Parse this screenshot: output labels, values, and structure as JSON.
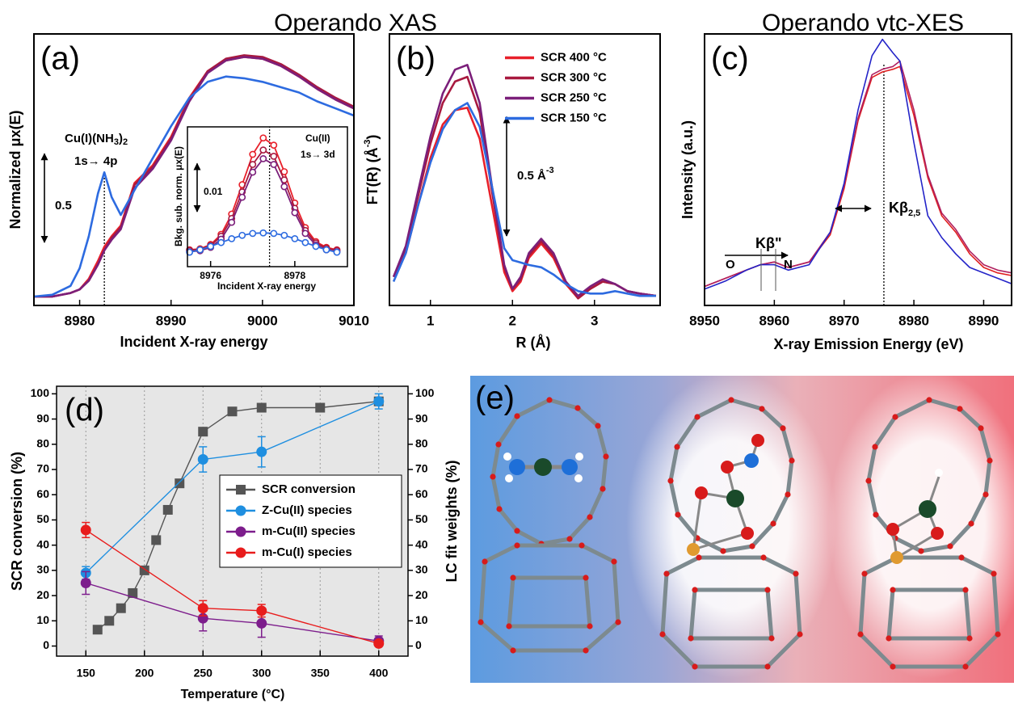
{
  "headings": [
    "Operando XAS",
    "Operando vtc-XES"
  ],
  "image_panel": {
    "label": "(e)"
  },
  "chart_data": [
    {
      "type": "line",
      "label": "(a)",
      "xlabel": "Incident X-ray energy",
      "ylabel": "Normalized μx(E)",
      "xlim": [
        8975,
        9010
      ],
      "xticks": [
        8980,
        8990,
        9000,
        9010
      ],
      "ylim": [
        -0.03,
        1.5
      ],
      "vline": 8982.7,
      "scale_bar": 0.5,
      "annotations": {
        "species": [
          "Cu(I)(NH",
          "3",
          ")",
          "2"
        ],
        "transition": "1s→ 4p"
      },
      "x": [
        8975,
        8977,
        8979,
        8980,
        8981,
        8982,
        8982.7,
        8983.5,
        8984.5,
        8986,
        8988,
        8990,
        8992,
        8994,
        8996,
        8998,
        9000,
        9002,
        9004,
        9006,
        9008,
        9010
      ],
      "series": [
        {
          "color": "#e8202a",
          "values": [
            0.02,
            0.02,
            0.04,
            0.06,
            0.12,
            0.22,
            0.3,
            0.36,
            0.42,
            0.66,
            0.76,
            0.92,
            1.14,
            1.29,
            1.35,
            1.37,
            1.36,
            1.32,
            1.26,
            1.19,
            1.13,
            1.08
          ]
        },
        {
          "color": "#a8193f",
          "values": [
            0.02,
            0.02,
            0.04,
            0.06,
            0.11,
            0.2,
            0.28,
            0.35,
            0.41,
            0.65,
            0.75,
            0.91,
            1.13,
            1.29,
            1.36,
            1.38,
            1.37,
            1.33,
            1.27,
            1.2,
            1.14,
            1.09
          ]
        },
        {
          "color": "#7b1f7a",
          "values": [
            0.02,
            0.02,
            0.04,
            0.06,
            0.11,
            0.2,
            0.28,
            0.34,
            0.4,
            0.63,
            0.74,
            0.9,
            1.12,
            1.28,
            1.35,
            1.37,
            1.36,
            1.32,
            1.26,
            1.19,
            1.13,
            1.08
          ]
        },
        {
          "color": "#2d6be0",
          "values": [
            0.02,
            0.03,
            0.08,
            0.18,
            0.36,
            0.6,
            0.72,
            0.58,
            0.48,
            0.62,
            0.8,
            0.98,
            1.14,
            1.23,
            1.26,
            1.25,
            1.23,
            1.2,
            1.17,
            1.12,
            1.08,
            1.04
          ]
        }
      ],
      "inset": {
        "type": "line",
        "xlabel": "Incident X-ray energy",
        "ylabel": "Bkg. sub. norm. μx(E)",
        "xlim": [
          8975.45,
          8979.25
        ],
        "xticks": [
          8976,
          8978
        ],
        "ylim": [
          0,
          0.029
        ],
        "marker": "circle",
        "vline": 8977.4,
        "scale_bar": 0.01,
        "annotations": [
          "Cu(II)",
          "1s→ 3d"
        ],
        "x": [
          8975.5,
          8975.75,
          8976,
          8976.25,
          8976.5,
          8976.75,
          8977,
          8977.25,
          8977.5,
          8977.75,
          8978,
          8978.25,
          8978.5,
          8978.75,
          8979
        ],
        "series": [
          {
            "color": "#e8202a",
            "values": [
              0.0035,
              0.0037,
              0.0046,
              0.0067,
              0.0109,
              0.017,
              0.0233,
              0.0267,
              0.0252,
              0.0197,
              0.0132,
              0.0081,
              0.0052,
              0.004,
              0.0035
            ]
          },
          {
            "color": "#a8193f",
            "values": [
              0.0034,
              0.0036,
              0.0044,
              0.0063,
              0.01,
              0.0155,
              0.0212,
              0.0242,
              0.0229,
              0.018,
              0.0121,
              0.0075,
              0.0049,
              0.0038,
              0.0034
            ]
          },
          {
            "color": "#7b1f7a",
            "values": [
              0.0031,
              0.0033,
              0.004,
              0.0057,
              0.0092,
              0.0144,
              0.0196,
              0.0224,
              0.0212,
              0.0166,
              0.0112,
              0.0069,
              0.0045,
              0.0035,
              0.0031
            ]
          },
          {
            "color": "#2d6be0",
            "values": [
              0.003,
              0.0035,
              0.0042,
              0.005,
              0.0058,
              0.0065,
              0.0069,
              0.007,
              0.0069,
              0.0065,
              0.0058,
              0.005,
              0.0042,
              0.0035,
              0.003
            ]
          }
        ]
      }
    },
    {
      "type": "line",
      "label": "(b)",
      "xlabel": "R (Å)",
      "ylabel": [
        "FT(R) (Å",
        "-3",
        ")"
      ],
      "xlim": [
        0.5,
        3.8
      ],
      "xticks": [
        1,
        2,
        3
      ],
      "ylim": [
        0,
        1.14
      ],
      "legend": "upper right",
      "scale_bar": 0.5,
      "scale_unit": [
        "Å",
        "-3"
      ],
      "x": [
        0.55,
        0.7,
        0.85,
        1.0,
        1.15,
        1.3,
        1.45,
        1.6,
        1.75,
        1.9,
        2.0,
        2.1,
        2.2,
        2.35,
        2.5,
        2.65,
        2.8,
        2.95,
        3.1,
        3.25,
        3.4,
        3.55,
        3.75
      ],
      "series": [
        {
          "name": "SCR 400 °C",
          "color": "#e8202a",
          "values": [
            0.12,
            0.22,
            0.42,
            0.62,
            0.76,
            0.82,
            0.83,
            0.7,
            0.42,
            0.14,
            0.06,
            0.1,
            0.2,
            0.26,
            0.2,
            0.09,
            0.03,
            0.07,
            0.1,
            0.09,
            0.06,
            0.05,
            0.04
          ]
        },
        {
          "name": "SCR 300 °C",
          "color": "#a8193f",
          "values": [
            0.12,
            0.24,
            0.46,
            0.68,
            0.85,
            0.94,
            0.96,
            0.81,
            0.48,
            0.16,
            0.07,
            0.11,
            0.21,
            0.27,
            0.21,
            0.1,
            0.03,
            0.07,
            0.1,
            0.09,
            0.06,
            0.05,
            0.04
          ]
        },
        {
          "name": "SCR 250 °C",
          "color": "#7b1f7a",
          "values": [
            0.12,
            0.25,
            0.48,
            0.71,
            0.89,
            0.99,
            1.01,
            0.85,
            0.5,
            0.17,
            0.07,
            0.12,
            0.22,
            0.28,
            0.22,
            0.1,
            0.04,
            0.08,
            0.11,
            0.09,
            0.06,
            0.05,
            0.04
          ]
        },
        {
          "name": "SCR 150 °C",
          "color": "#2d6be0",
          "values": [
            0.1,
            0.22,
            0.42,
            0.6,
            0.74,
            0.82,
            0.85,
            0.75,
            0.5,
            0.24,
            0.19,
            0.18,
            0.17,
            0.16,
            0.13,
            0.09,
            0.06,
            0.05,
            0.05,
            0.06,
            0.05,
            0.04,
            0.04
          ]
        }
      ]
    },
    {
      "type": "line",
      "label": "(c)",
      "xlabel": "X-ray Emission Energy (eV)",
      "ylabel": "Intensity (a.u.)",
      "xlim": [
        8950,
        8994
      ],
      "xticks": [
        8950,
        8960,
        8970,
        8980,
        8990
      ],
      "ylim": [
        0,
        1
      ],
      "vline": 8975.7,
      "annotations": {
        "kb_satellite": "Kβ\"",
        "from": "O",
        "to": "N",
        "kb_main": [
          "Kβ",
          "2,5"
        ]
      },
      "x": [
        8950,
        8953,
        8956,
        8958,
        8960,
        8962,
        8965,
        8968,
        8970,
        8972,
        8974,
        8975.5,
        8977,
        8978,
        8980,
        8982,
        8984,
        8986,
        8988,
        8990,
        8992,
        8994
      ],
      "series": [
        {
          "color": "#e02020",
          "values": [
            0.07,
            0.1,
            0.13,
            0.15,
            0.16,
            0.14,
            0.16,
            0.26,
            0.43,
            0.68,
            0.84,
            0.86,
            0.87,
            0.88,
            0.7,
            0.47,
            0.33,
            0.27,
            0.19,
            0.14,
            0.12,
            0.11
          ]
        },
        {
          "color": "#b02060",
          "values": [
            0.07,
            0.1,
            0.13,
            0.15,
            0.16,
            0.14,
            0.16,
            0.27,
            0.44,
            0.69,
            0.85,
            0.87,
            0.88,
            0.9,
            0.72,
            0.48,
            0.34,
            0.28,
            0.2,
            0.15,
            0.13,
            0.12
          ]
        },
        {
          "color": "#2424c8",
          "values": [
            0.06,
            0.09,
            0.13,
            0.15,
            0.15,
            0.13,
            0.15,
            0.27,
            0.45,
            0.72,
            0.92,
            0.98,
            0.93,
            0.9,
            0.6,
            0.33,
            0.25,
            0.19,
            0.14,
            0.12,
            0.1,
            0.08
          ]
        }
      ]
    },
    {
      "type": "line",
      "label": "(d)",
      "xlabel": "Temperature (°C)",
      "ylabel": "SCR conversion (%)",
      "y2label": "LC fit weights (%)",
      "xlim": [
        125,
        425
      ],
      "xticks": [
        150,
        200,
        250,
        300,
        350,
        400
      ],
      "ylim": [
        -4,
        103
      ],
      "yticks": [
        0,
        10,
        20,
        30,
        40,
        50,
        60,
        70,
        80,
        90,
        100
      ],
      "y2lim": [
        -4,
        103
      ],
      "y2ticks": [
        0,
        10,
        20,
        30,
        40,
        50,
        60,
        70,
        80,
        90,
        100
      ],
      "grid": "x",
      "legend": "center right",
      "series": [
        {
          "name": "SCR conversion",
          "color": "#555555",
          "marker": "square",
          "x": [
            160,
            170,
            180,
            190,
            200,
            210,
            220,
            230,
            250,
            275,
            300,
            350,
            400
          ],
          "values": [
            6.5,
            10,
            15,
            21,
            30,
            42,
            54,
            64.5,
            85,
            93,
            94.5,
            94.5,
            97
          ]
        },
        {
          "name": "Z-Cu(II) species",
          "color": "#1f8fe0",
          "marker": "circle",
          "axis": "y2",
          "x": [
            150,
            250,
            300,
            400
          ],
          "values": [
            29,
            74,
            77,
            97
          ],
          "errors": [
            2.5,
            5,
            6,
            3
          ]
        },
        {
          "name": "m-Cu(II) species",
          "color": "#7d1d8c",
          "marker": "circle",
          "axis": "y2",
          "x": [
            150,
            250,
            300,
            400
          ],
          "values": [
            25,
            11,
            9,
            2
          ],
          "errors": [
            4.5,
            5,
            5.5,
            2
          ]
        },
        {
          "name": "m-Cu(I) species",
          "color": "#e81c1c",
          "marker": "circle",
          "axis": "y2",
          "x": [
            150,
            250,
            300,
            400
          ],
          "values": [
            46,
            15,
            14,
            1
          ],
          "errors": [
            3,
            3,
            2.5,
            1
          ]
        }
      ]
    }
  ]
}
